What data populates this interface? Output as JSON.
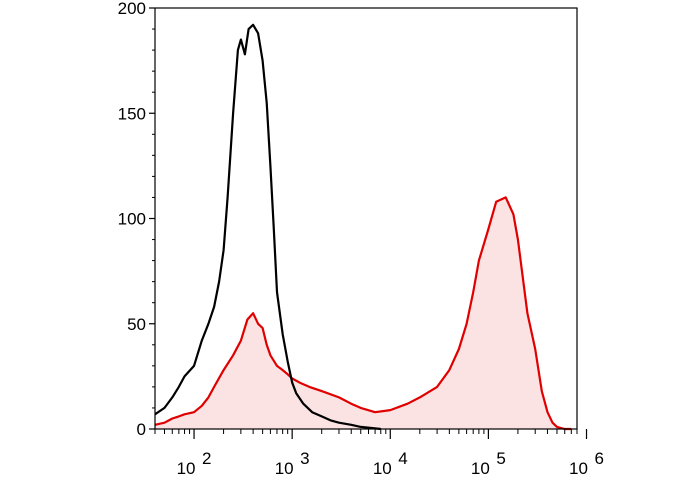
{
  "chart_data": {
    "type": "area",
    "title": "",
    "xlabel": "",
    "ylabel": "",
    "x_scale": "log",
    "xlim": [
      40,
      800000
    ],
    "ylim": [
      0,
      200
    ],
    "grid": false,
    "legend": "none",
    "y_ticks": [
      {
        "value": 0,
        "label": "0"
      },
      {
        "value": 50,
        "label": "50"
      },
      {
        "value": 100,
        "label": "100"
      },
      {
        "value": 150,
        "label": "150"
      },
      {
        "value": 200,
        "label": "200"
      }
    ],
    "x_ticks": [
      {
        "value": 100,
        "base": "10",
        "exp": "2"
      },
      {
        "value": 1000,
        "base": "10",
        "exp": "3"
      },
      {
        "value": 10000,
        "base": "10",
        "exp": "4"
      },
      {
        "value": 100000,
        "base": "10",
        "exp": "5"
      },
      {
        "value": 1000000,
        "base": "10",
        "exp": "6"
      }
    ],
    "series": [
      {
        "color": "#000000",
        "fill": "none",
        "x": [
          40,
          50,
          60,
          70,
          80,
          100,
          120,
          140,
          160,
          180,
          200,
          220,
          250,
          280,
          300,
          330,
          360,
          400,
          450,
          500,
          550,
          600,
          650,
          700,
          800,
          900,
          1000,
          1100,
          1300,
          1600,
          2000,
          2500,
          3000,
          4000,
          5000,
          8000
        ],
        "values": [
          7,
          10,
          15,
          20,
          25,
          30,
          42,
          50,
          58,
          70,
          85,
          110,
          150,
          180,
          185,
          178,
          190,
          192,
          188,
          175,
          155,
          125,
          95,
          65,
          45,
          32,
          22,
          17,
          12,
          8,
          6,
          4,
          3,
          2,
          1,
          0
        ]
      },
      {
        "color": "#e00000",
        "fill": "#fbe3e3",
        "x": [
          40,
          50,
          60,
          70,
          80,
          100,
          120,
          140,
          160,
          200,
          250,
          300,
          350,
          400,
          450,
          500,
          550,
          600,
          700,
          800,
          900,
          1000,
          1200,
          1500,
          2000,
          3000,
          4000,
          5000,
          7000,
          10000,
          15000,
          20000,
          30000,
          40000,
          50000,
          60000,
          70000,
          80000,
          100000,
          120000,
          150000,
          180000,
          200000,
          250000,
          300000,
          350000,
          400000,
          450000,
          500000,
          600000,
          700000
        ],
        "values": [
          2,
          3,
          5,
          6,
          7,
          8,
          11,
          15,
          20,
          28,
          35,
          42,
          52,
          55,
          50,
          48,
          40,
          35,
          30,
          28,
          26,
          24,
          22,
          20,
          18,
          15,
          12,
          10,
          8,
          9,
          12,
          15,
          20,
          28,
          38,
          50,
          65,
          80,
          95,
          108,
          110,
          102,
          90,
          55,
          38,
          18,
          8,
          3,
          1,
          0,
          0
        ]
      }
    ]
  }
}
